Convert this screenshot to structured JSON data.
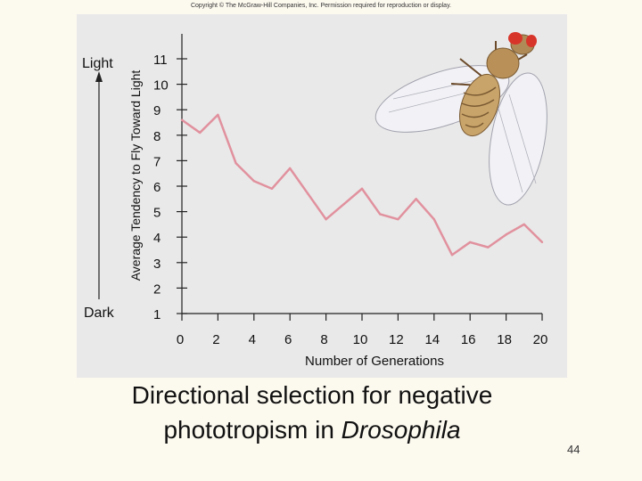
{
  "copyright": "Copyright © The McGraw-Hill Companies, Inc. Permission required for reproduction or display.",
  "caption": {
    "line1": "Directional selection for negative",
    "line2_prefix": "phototropism in ",
    "line2_italic": "Drosophila"
  },
  "slide_number": "44",
  "scale_labels": {
    "top": "Light",
    "bottom": "Dark"
  },
  "colors": {
    "series": "#e1919e",
    "axis": "#222222",
    "panel": "#e9e9e9",
    "background": "#fcf9ef"
  },
  "illustration": "fruit-fly",
  "chart_data": {
    "type": "line",
    "title": "",
    "xlabel": "Number of Generations",
    "ylabel": "Average Tendency to Fly Toward Light",
    "xlim": [
      0,
      20
    ],
    "ylim": [
      1,
      11
    ],
    "x_ticks": [
      0,
      2,
      4,
      6,
      8,
      10,
      12,
      14,
      16,
      18,
      20
    ],
    "y_ticks": [
      1,
      2,
      3,
      4,
      5,
      6,
      7,
      8,
      9,
      10,
      11
    ],
    "grid": false,
    "legend": "none",
    "series": [
      {
        "x": [
          0,
          1,
          2,
          3,
          4,
          5,
          6,
          7,
          8,
          9,
          10,
          11,
          12,
          13,
          14,
          15,
          16,
          17,
          18,
          19,
          20
        ],
        "y": [
          8.6,
          8.1,
          8.8,
          6.9,
          6.2,
          5.9,
          6.7,
          5.7,
          4.7,
          5.3,
          5.9,
          4.9,
          4.7,
          5.5,
          4.7,
          3.3,
          3.8,
          3.6,
          4.1,
          4.5,
          3.8
        ]
      }
    ]
  }
}
